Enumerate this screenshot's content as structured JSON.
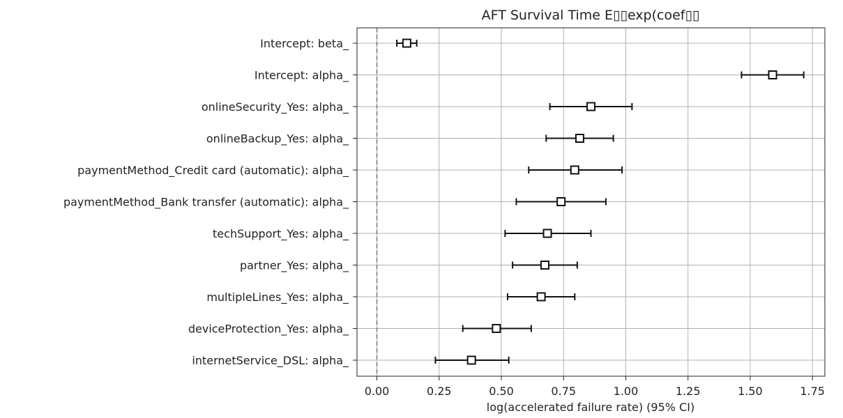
{
  "chart_data": {
    "type": "scatter",
    "title": "AFT Survival Time E▯▯exp(coef▯▯",
    "xlabel": "log(accelerated failure rate) (95% CI)",
    "ylabel": "",
    "xlim": [
      -0.08,
      1.8
    ],
    "xticks": [
      "0.00",
      "0.25",
      "0.50",
      "0.75",
      "1.00",
      "1.25",
      "1.50",
      "1.75"
    ],
    "grid": true,
    "reference_line": 0.0,
    "rows": [
      {
        "label": "Intercept: beta_",
        "value": 0.12,
        "lower": 0.08,
        "upper": 0.16
      },
      {
        "label": "Intercept: alpha_",
        "value": 1.59,
        "lower": 1.465,
        "upper": 1.715
      },
      {
        "label": "onlineSecurity_Yes: alpha_",
        "value": 0.86,
        "lower": 0.695,
        "upper": 1.025
      },
      {
        "label": "onlineBackup_Yes: alpha_",
        "value": 0.815,
        "lower": 0.68,
        "upper": 0.95
      },
      {
        "label": "paymentMethod_Credit card (automatic): alpha_",
        "value": 0.795,
        "lower": 0.61,
        "upper": 0.985
      },
      {
        "label": "paymentMethod_Bank transfer (automatic): alpha_",
        "value": 0.74,
        "lower": 0.56,
        "upper": 0.92
      },
      {
        "label": "techSupport_Yes: alpha_",
        "value": 0.685,
        "lower": 0.515,
        "upper": 0.86
      },
      {
        "label": "partner_Yes: alpha_",
        "value": 0.675,
        "lower": 0.545,
        "upper": 0.805
      },
      {
        "label": "multipleLines_Yes: alpha_",
        "value": 0.66,
        "lower": 0.525,
        "upper": 0.795
      },
      {
        "label": "deviceProtection_Yes: alpha_",
        "value": 0.48,
        "lower": 0.345,
        "upper": 0.62
      },
      {
        "label": "internetService_DSL: alpha_",
        "value": 0.38,
        "lower": 0.235,
        "upper": 0.53
      }
    ]
  }
}
